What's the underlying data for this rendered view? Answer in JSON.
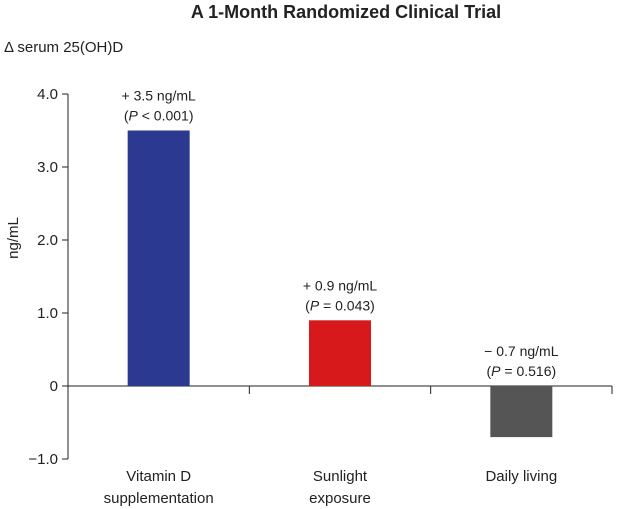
{
  "chart_data": {
    "type": "bar",
    "title": "A 1-Month Randomized Clinical Trial",
    "subtitle": "Δ serum 25(OH)D",
    "ylabel": "ng/mL",
    "xlabel": "",
    "ylim": [
      -1.0,
      4.0
    ],
    "yticks": [
      {
        "value": 4.0,
        "label": "4.0"
      },
      {
        "value": 3.0,
        "label": "3.0"
      },
      {
        "value": 2.0,
        "label": "2.0"
      },
      {
        "value": 1.0,
        "label": "1.0"
      },
      {
        "value": 0,
        "label": "0"
      },
      {
        "value": -1.0,
        "label": "−1.0"
      }
    ],
    "categories": [
      [
        "Vitamin D",
        "supplementation"
      ],
      [
        "Sunlight",
        "exposure"
      ],
      [
        "Daily living"
      ]
    ],
    "values": [
      3.5,
      0.9,
      -0.7
    ],
    "colors": [
      "#2b3990",
      "#d7191c",
      "#555555"
    ],
    "data_labels": [
      {
        "change": "+ 3.5 ng/mL",
        "p_prefix": "(",
        "p": "P",
        "p_rest": " < 0.001)"
      },
      {
        "change": "+ 0.9 ng/mL",
        "p_prefix": "(",
        "p": "P",
        "p_rest": " = 0.043)"
      },
      {
        "change": "− 0.7 ng/mL",
        "p_prefix": "(",
        "p": "P",
        "p_rest": " = 0.516)"
      }
    ],
    "grid": false,
    "legend": "none"
  }
}
